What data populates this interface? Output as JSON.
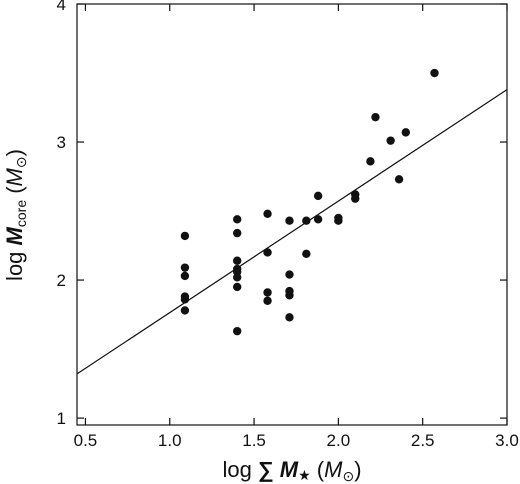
{
  "chart_data": {
    "type": "scatter",
    "xlim": [
      0.45,
      3.0
    ],
    "ylim": [
      0.95,
      4.0
    ],
    "xticks": [
      0.5,
      1.0,
      1.5,
      2.0,
      2.5,
      3.0
    ],
    "xtick_labels": [
      "0.5",
      "1.0",
      "1.5",
      "2.0",
      "2.5",
      "3.0"
    ],
    "yticks": [
      1,
      2,
      3,
      4
    ],
    "ytick_labels": [
      "1",
      "2",
      "3",
      "4"
    ],
    "xlabel": {
      "prefix": "log",
      "sum_symbol": "∑",
      "var": "M",
      "star": "★",
      "unit_open": "(",
      "unit_var": "M",
      "unit_sub": "⊙",
      "unit_close": ")"
    },
    "ylabel": {
      "prefix": "log",
      "var": "M",
      "sub": "core",
      "unit_open": "(",
      "unit_var": "M",
      "unit_sub": "⊙",
      "unit_close": ")"
    },
    "fit_line": {
      "x": [
        0.45,
        3.0
      ],
      "y": [
        1.32,
        3.38
      ]
    },
    "points": [
      {
        "x": 1.09,
        "y": 2.32
      },
      {
        "x": 1.09,
        "y": 2.09
      },
      {
        "x": 1.09,
        "y": 2.03
      },
      {
        "x": 1.09,
        "y": 1.88
      },
      {
        "x": 1.09,
        "y": 1.86
      },
      {
        "x": 1.09,
        "y": 1.78
      },
      {
        "x": 1.4,
        "y": 2.44
      },
      {
        "x": 1.4,
        "y": 2.34
      },
      {
        "x": 1.4,
        "y": 2.14
      },
      {
        "x": 1.4,
        "y": 2.08
      },
      {
        "x": 1.4,
        "y": 2.06
      },
      {
        "x": 1.4,
        "y": 2.02
      },
      {
        "x": 1.4,
        "y": 1.95
      },
      {
        "x": 1.4,
        "y": 1.63
      },
      {
        "x": 1.58,
        "y": 2.48
      },
      {
        "x": 1.58,
        "y": 2.2
      },
      {
        "x": 1.58,
        "y": 1.91
      },
      {
        "x": 1.58,
        "y": 1.85
      },
      {
        "x": 1.71,
        "y": 2.43
      },
      {
        "x": 1.71,
        "y": 2.04
      },
      {
        "x": 1.71,
        "y": 1.92
      },
      {
        "x": 1.71,
        "y": 1.89
      },
      {
        "x": 1.71,
        "y": 1.73
      },
      {
        "x": 1.81,
        "y": 2.43
      },
      {
        "x": 1.81,
        "y": 2.19
      },
      {
        "x": 1.88,
        "y": 2.61
      },
      {
        "x": 1.88,
        "y": 2.44
      },
      {
        "x": 2.0,
        "y": 2.45
      },
      {
        "x": 2.0,
        "y": 2.43
      },
      {
        "x": 2.1,
        "y": 2.62
      },
      {
        "x": 2.1,
        "y": 2.59
      },
      {
        "x": 2.19,
        "y": 2.86
      },
      {
        "x": 2.22,
        "y": 3.18
      },
      {
        "x": 2.31,
        "y": 3.01
      },
      {
        "x": 2.36,
        "y": 2.73
      },
      {
        "x": 2.4,
        "y": 3.07
      },
      {
        "x": 2.57,
        "y": 3.5
      }
    ]
  }
}
